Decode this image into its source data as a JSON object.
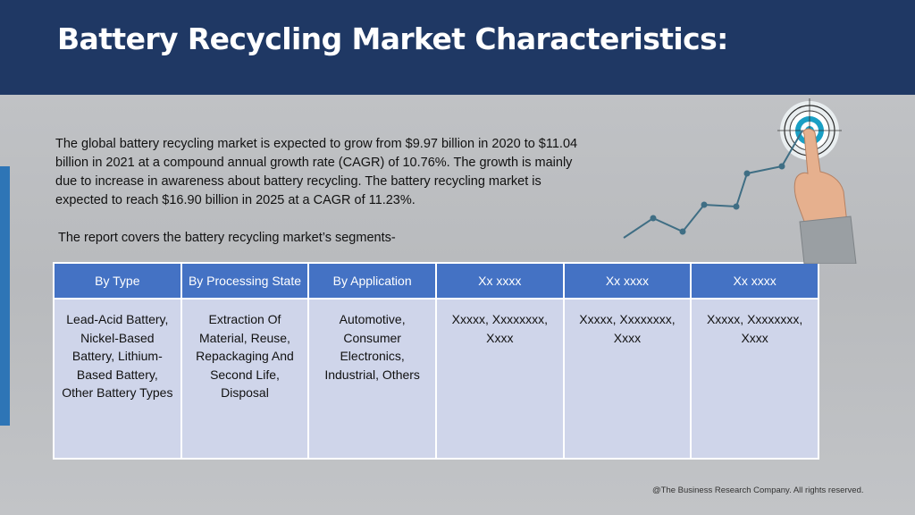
{
  "header": {
    "title": "Battery Recycling Market Characteristics:"
  },
  "intro": "The global battery recycling market is expected to grow from $9.97 billion in 2020 to $11.04 billion in 2021 at a compound annual growth rate (CAGR) of 10.76%. The growth is mainly due to increase in awareness about battery recycling. The battery recycling market is expected to reach $16.90 billion in 2025 at a CAGR of 11.23%.",
  "segments_intro": "The report covers the battery recycling market’s segments-",
  "table": {
    "headers": [
      "By Type",
      "By Processing State",
      "By Application",
      "Xx xxxx",
      "Xx xxxx",
      "Xx xxxx"
    ],
    "cells": [
      "Lead-Acid Battery, Nickel-Based Battery, Lithium-Based Battery, Other Battery Types",
      "Extraction Of Material, Reuse, Repackaging And Second Life, Disposal",
      "Automotive, Consumer Electronics, Industrial, Others",
      "Xxxxx, Xxxxxxxx, Xxxx",
      "Xxxxx, Xxxxxxxx, Xxxx",
      "Xxxxx, Xxxxxxxx, Xxxx"
    ]
  },
  "graphic": {
    "icon": "growth-chart-target-hand-icon",
    "line_color": "#3f6e84"
  },
  "footer": "@The Business Research Company. All rights reserved."
}
